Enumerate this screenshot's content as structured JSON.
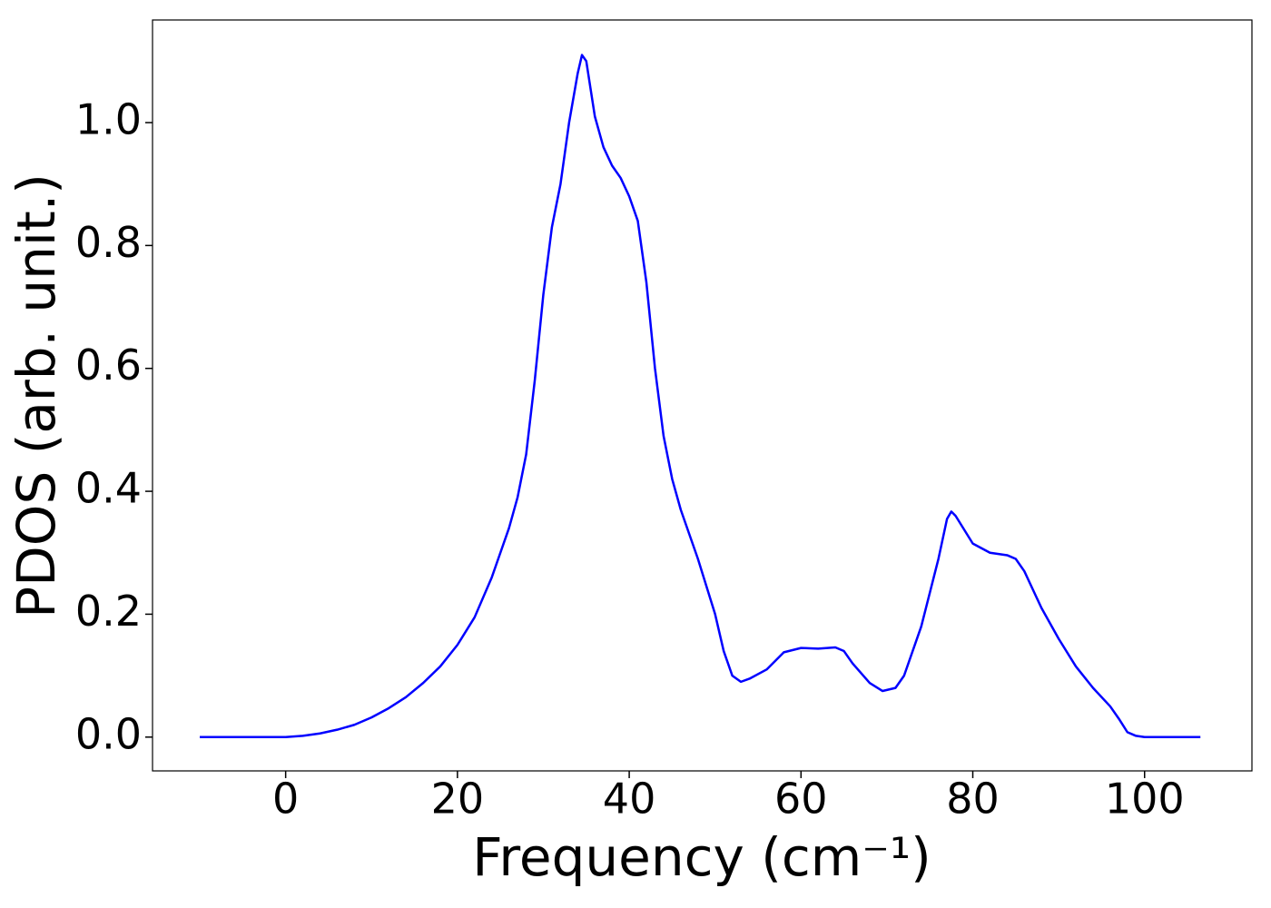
{
  "chart_data": {
    "type": "line",
    "xlabel": "Frequency (cm⁻¹)",
    "ylabel": "PDOS (arb. unit.)",
    "xlim": [
      -15.5,
      112.5
    ],
    "ylim": [
      -0.055,
      1.167
    ],
    "xticks": [
      0,
      20,
      40,
      60,
      80,
      100
    ],
    "yticks": [
      {
        "value": 0,
        "label": "0.0"
      },
      {
        "value": 0.2,
        "label": "0.2"
      },
      {
        "value": 0.4,
        "label": "0.4"
      },
      {
        "value": 0.6,
        "label": "0.6"
      },
      {
        "value": 0.8,
        "label": "0.8"
      },
      {
        "value": 1,
        "label": "1.0"
      }
    ],
    "grid": false,
    "x": [
      -10,
      0,
      2,
      4,
      6,
      8,
      10,
      12,
      14,
      16,
      18,
      20,
      22,
      24,
      25,
      26,
      27,
      28,
      29,
      30,
      31,
      32,
      33,
      34,
      34.5,
      35,
      36,
      37,
      38,
      39,
      40,
      41,
      42,
      43,
      44,
      45,
      46,
      48,
      50,
      51,
      52,
      53,
      54,
      56,
      58,
      60,
      62,
      64,
      65,
      66,
      68,
      69.5,
      71,
      72,
      74,
      76,
      77,
      77.5,
      78,
      80,
      82,
      84,
      85,
      86,
      88,
      90,
      92,
      94,
      96,
      97,
      98,
      99,
      100,
      106.5
    ],
    "series": [
      {
        "name": "PDOS",
        "color": "#0000ff",
        "values": [
          0,
          0,
          0.002,
          0.006,
          0.012,
          0.02,
          0.032,
          0.047,
          0.065,
          0.088,
          0.115,
          0.15,
          0.195,
          0.26,
          0.3,
          0.34,
          0.39,
          0.46,
          0.58,
          0.72,
          0.83,
          0.9,
          1.0,
          1.08,
          1.11,
          1.1,
          1.01,
          0.96,
          0.93,
          0.91,
          0.88,
          0.84,
          0.74,
          0.6,
          0.49,
          0.42,
          0.37,
          0.29,
          0.2,
          0.14,
          0.1,
          0.09,
          0.095,
          0.11,
          0.138,
          0.145,
          0.144,
          0.146,
          0.14,
          0.12,
          0.088,
          0.075,
          0.08,
          0.1,
          0.18,
          0.29,
          0.355,
          0.367,
          0.36,
          0.315,
          0.3,
          0.296,
          0.29,
          0.27,
          0.21,
          0.16,
          0.115,
          0.08,
          0.05,
          0.03,
          0.008,
          0.002,
          0,
          0
        ]
      }
    ]
  }
}
